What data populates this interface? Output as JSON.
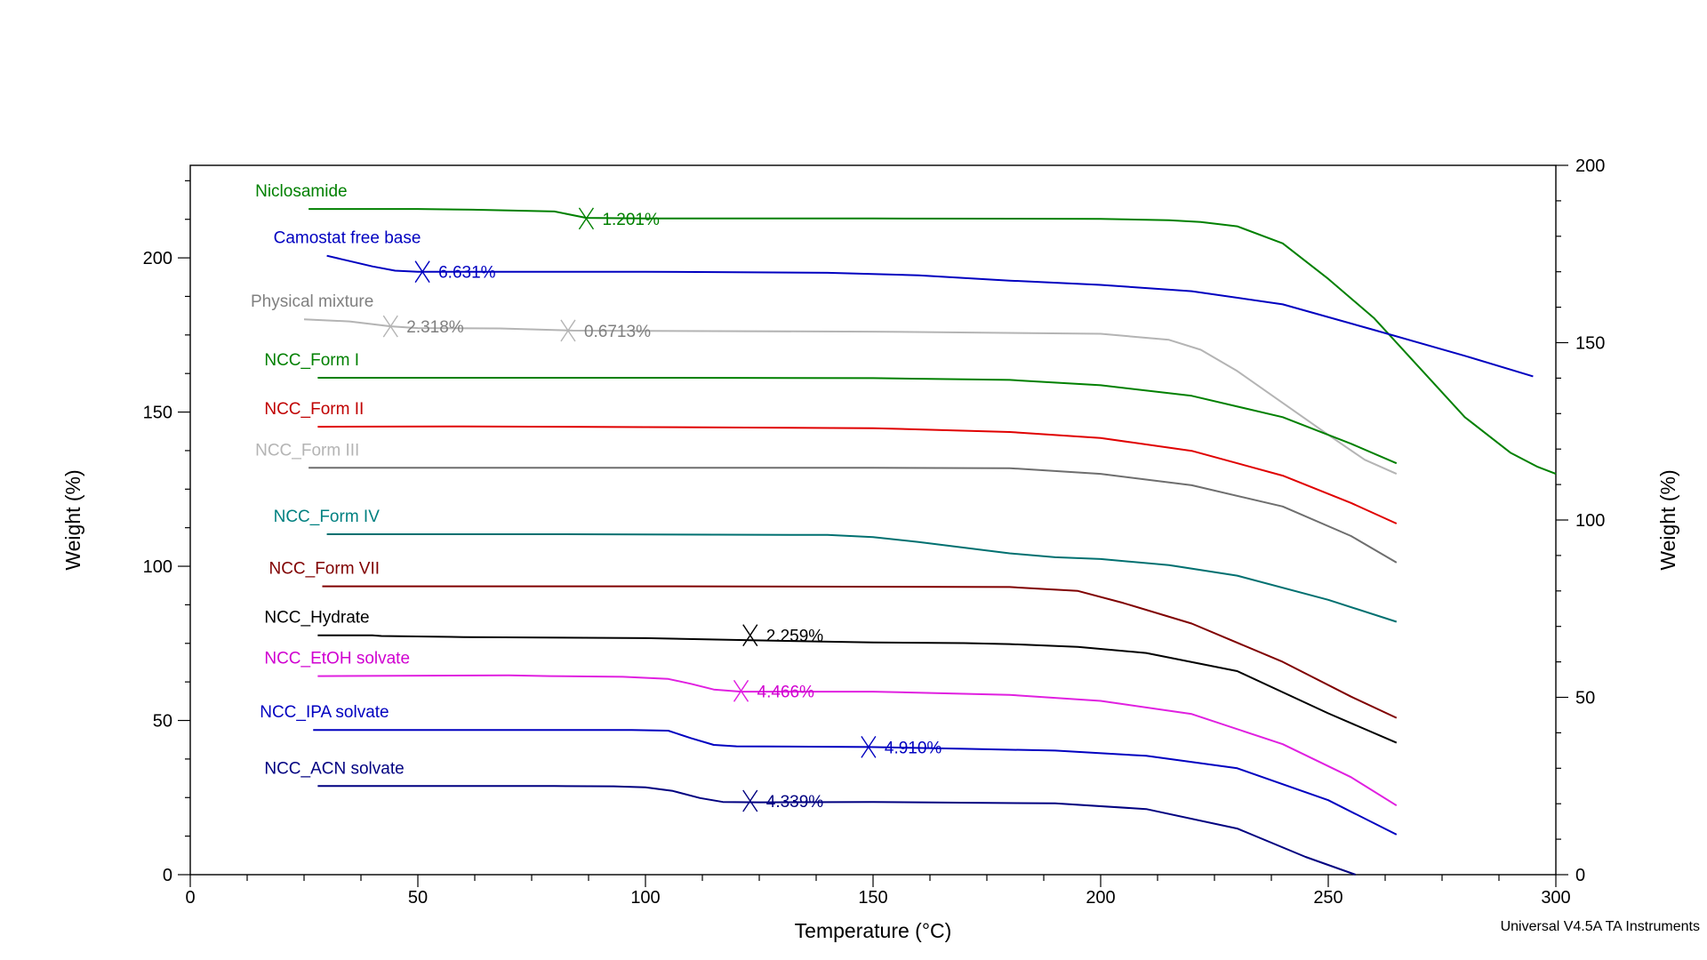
{
  "chart_data": {
    "type": "line",
    "xlabel": "Temperature (°C)",
    "ylabel_left": "Weight (%)",
    "ylabel_right": "Weight (%)",
    "footer": "Universal V4.5A TA Instruments",
    "xlim": [
      0,
      300
    ],
    "xticks": [
      "0",
      "50",
      "100",
      "150",
      "200",
      "250",
      "300"
    ],
    "ylim_left": [
      0,
      230
    ],
    "yticks_left": [
      "0",
      "50",
      "100",
      "150",
      "200"
    ],
    "ylim_right": [
      0,
      200
    ],
    "yticks_right": [
      "0",
      "50",
      "100",
      "150",
      "200"
    ],
    "grid": false,
    "series": [
      {
        "name": "Niclosamide",
        "color": "#008000",
        "axis": "right",
        "points": [
          [
            26,
            187.7
          ],
          [
            50,
            187.7
          ],
          [
            62,
            187.5
          ],
          [
            80,
            187
          ],
          [
            87,
            185.2
          ],
          [
            100,
            185
          ],
          [
            150,
            185
          ],
          [
            200,
            184.9
          ],
          [
            215,
            184.5
          ],
          [
            222,
            184
          ],
          [
            230,
            182.8
          ],
          [
            240,
            178
          ],
          [
            250,
            168
          ],
          [
            260,
            157
          ],
          [
            270,
            143
          ],
          [
            280,
            129
          ],
          [
            290,
            119
          ],
          [
            296,
            115
          ],
          [
            300,
            113
          ]
        ],
        "annotations": [
          {
            "text": "1.201%",
            "x": 87,
            "y": 185
          }
        ]
      },
      {
        "name": "Camostat free base",
        "color": "#0000c0",
        "axis": "right",
        "points": [
          [
            30,
            174.5
          ],
          [
            35,
            173
          ],
          [
            40,
            171.5
          ],
          [
            45,
            170.3
          ],
          [
            50,
            170
          ],
          [
            100,
            170
          ],
          [
            140,
            169.7
          ],
          [
            160,
            169
          ],
          [
            180,
            167.5
          ],
          [
            200,
            166.3
          ],
          [
            220,
            164.5
          ],
          [
            240,
            160.8
          ],
          [
            260,
            153.6
          ],
          [
            280,
            146.3
          ],
          [
            295,
            140.5
          ]
        ],
        "annotations": [
          {
            "text": "6.631%",
            "x": 51,
            "y": 170
          }
        ]
      },
      {
        "name": "Physical mixture",
        "color": "#b4b4b4",
        "label_color": "#808080",
        "axis": "right",
        "points": [
          [
            25,
            156.6
          ],
          [
            35,
            156
          ],
          [
            44,
            154.6
          ],
          [
            50,
            154.1
          ],
          [
            68,
            154
          ],
          [
            84,
            153.4
          ],
          [
            100,
            153.3
          ],
          [
            150,
            153.1
          ],
          [
            200,
            152.5
          ],
          [
            215,
            150.8
          ],
          [
            222,
            148
          ],
          [
            230,
            142
          ],
          [
            240,
            133
          ],
          [
            250,
            124
          ],
          [
            258,
            117
          ],
          [
            265,
            113
          ]
        ],
        "annotations": [
          {
            "text": "2.318%",
            "x": 44,
            "y": 154.6
          },
          {
            "text": "0.6713%",
            "x": 83,
            "y": 153.4
          }
        ]
      },
      {
        "name": "NCC_Form I",
        "color": "#008000",
        "axis": "right",
        "points": [
          [
            28,
            140.1
          ],
          [
            50,
            140.1
          ],
          [
            100,
            140.1
          ],
          [
            150,
            140
          ],
          [
            180,
            139.5
          ],
          [
            200,
            138
          ],
          [
            220,
            135
          ],
          [
            240,
            129
          ],
          [
            255,
            121.5
          ],
          [
            265,
            116
          ]
        ]
      },
      {
        "name": "NCC_Form II",
        "color": "#e00000",
        "label_color": "#c00000",
        "axis": "right",
        "points": [
          [
            28,
            126.3
          ],
          [
            60,
            126.4
          ],
          [
            100,
            126.2
          ],
          [
            150,
            125.9
          ],
          [
            180,
            124.8
          ],
          [
            200,
            123.1
          ],
          [
            220,
            119.5
          ],
          [
            240,
            112.5
          ],
          [
            255,
            104.8
          ],
          [
            265,
            99
          ]
        ]
      },
      {
        "name": "NCC_Form III",
        "color": "#6e6e6e",
        "label_color": "#b4b4b4",
        "axis": "right",
        "points": [
          [
            26,
            114.7
          ],
          [
            50,
            114.7
          ],
          [
            100,
            114.7
          ],
          [
            150,
            114.7
          ],
          [
            180,
            114.6
          ],
          [
            200,
            113
          ],
          [
            220,
            109.8
          ],
          [
            240,
            103.8
          ],
          [
            255,
            95.5
          ],
          [
            265,
            88
          ]
        ]
      },
      {
        "name": "NCC_Form IV",
        "color": "#007070",
        "label_color": "#008080",
        "axis": "right",
        "points": [
          [
            30,
            96
          ],
          [
            80,
            96
          ],
          [
            140,
            95.8
          ],
          [
            150,
            95.2
          ],
          [
            160,
            93.8
          ],
          [
            170,
            92.2
          ],
          [
            180,
            90.6
          ],
          [
            190,
            89.5
          ],
          [
            200,
            89
          ],
          [
            215,
            87.3
          ],
          [
            230,
            84.3
          ],
          [
            250,
            77.5
          ],
          [
            265,
            71.3
          ]
        ]
      },
      {
        "name": "NCC_Form VII",
        "color": "#800000",
        "axis": "right",
        "points": [
          [
            29,
            81.3
          ],
          [
            100,
            81.3
          ],
          [
            180,
            81.1
          ],
          [
            195,
            80
          ],
          [
            205,
            76.6
          ],
          [
            220,
            70.8
          ],
          [
            240,
            60
          ],
          [
            255,
            50.2
          ],
          [
            265,
            44.2
          ]
        ]
      },
      {
        "name": "NCC_Hydrate",
        "color": "#000000",
        "axis": "right",
        "points": [
          [
            28,
            67.5
          ],
          [
            40,
            67.5
          ],
          [
            42,
            67.3
          ],
          [
            60,
            67
          ],
          [
            100,
            66.7
          ],
          [
            123,
            66.1
          ],
          [
            150,
            65.5
          ],
          [
            170,
            65.3
          ],
          [
            180,
            65
          ],
          [
            195,
            64.2
          ],
          [
            210,
            62.5
          ],
          [
            230,
            57.4
          ],
          [
            250,
            45.5
          ],
          [
            265,
            37.2
          ]
        ],
        "annotations": [
          {
            "text": "2.259%",
            "x": 123,
            "y": 67.5
          }
        ]
      },
      {
        "name": "NCC_EtOH solvate",
        "color": "#e020e0",
        "label_color": "#d000d0",
        "axis": "right",
        "points": [
          [
            28,
            56
          ],
          [
            70,
            56.2
          ],
          [
            79,
            56
          ],
          [
            95,
            55.8
          ],
          [
            105,
            55.2
          ],
          [
            110,
            53.8
          ],
          [
            115,
            52.2
          ],
          [
            121,
            51.6
          ],
          [
            150,
            51.6
          ],
          [
            180,
            50.7
          ],
          [
            200,
            49
          ],
          [
            220,
            45.3
          ],
          [
            240,
            36.8
          ],
          [
            255,
            27.5
          ],
          [
            265,
            19.5
          ]
        ],
        "annotations": [
          {
            "text": "4.466%",
            "x": 121,
            "y": 51.8
          }
        ]
      },
      {
        "name": "NCC_IPA solvate",
        "color": "#0000c0",
        "axis": "right",
        "points": [
          [
            27,
            40.8
          ],
          [
            80,
            40.8
          ],
          [
            97,
            40.8
          ],
          [
            105,
            40.6
          ],
          [
            110,
            38.5
          ],
          [
            115,
            36.6
          ],
          [
            120,
            36.2
          ],
          [
            149,
            36
          ],
          [
            170,
            35.5
          ],
          [
            190,
            35
          ],
          [
            210,
            33.5
          ],
          [
            230,
            30
          ],
          [
            250,
            21
          ],
          [
            265,
            11.3
          ]
        ],
        "annotations": [
          {
            "text": "4.910%",
            "x": 149,
            "y": 36
          }
        ]
      },
      {
        "name": "NCC_ACN solvate",
        "color": "#000080",
        "axis": "right",
        "points": [
          [
            28,
            25
          ],
          [
            80,
            25
          ],
          [
            93,
            24.9
          ],
          [
            100,
            24.6
          ],
          [
            106,
            23.6
          ],
          [
            112,
            21.6
          ],
          [
            117,
            20.5
          ],
          [
            125,
            20.4
          ],
          [
            150,
            20.5
          ],
          [
            190,
            20.1
          ],
          [
            210,
            18.5
          ],
          [
            230,
            13
          ],
          [
            245,
            5
          ],
          [
            256,
            0
          ]
        ],
        "annotations": [
          {
            "text": "4.339%",
            "x": 123,
            "y": 20.8
          }
        ]
      }
    ]
  }
}
